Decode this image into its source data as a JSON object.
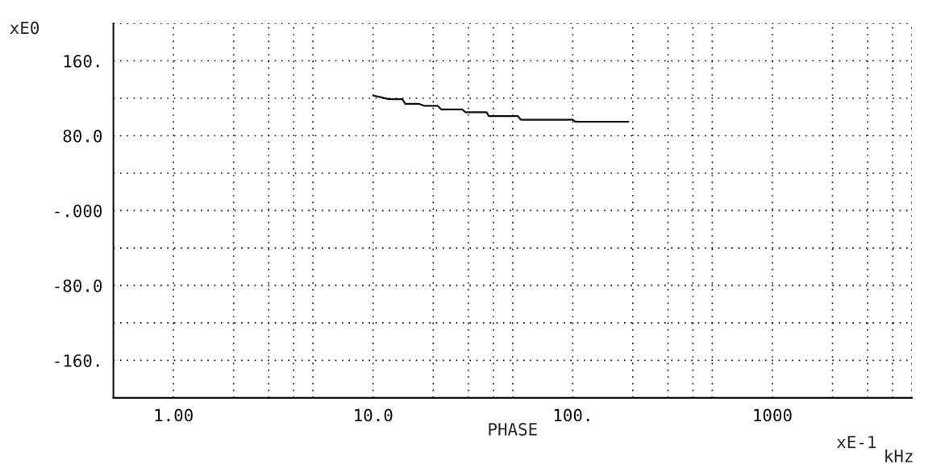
{
  "chart_data": {
    "type": "line",
    "xlabel": "PHASE",
    "annotations": [
      "xE0",
      "xE-1",
      "kHz"
    ],
    "x": [
      10,
      11,
      12,
      14,
      14.5,
      17,
      18,
      21,
      22,
      28,
      29,
      37,
      38,
      53,
      55,
      100,
      103,
      190
    ],
    "series": [
      {
        "color": "#111111",
        "values": [
          123,
          121,
          119,
          119,
          114,
          114,
          112,
          112,
          108,
          108,
          105,
          105,
          101,
          101,
          97,
          97,
          95,
          95
        ]
      }
    ],
    "log": "x",
    "xlim": [
      0.5,
      5000
    ],
    "xticks": [
      {
        "value": 1,
        "label": "1.00"
      },
      {
        "value": 2,
        "label": null
      },
      {
        "value": 3,
        "label": null
      },
      {
        "value": 4,
        "label": null
      },
      {
        "value": 5,
        "label": null
      },
      {
        "value": 10,
        "label": "10.0"
      },
      {
        "value": 20,
        "label": null
      },
      {
        "value": 30,
        "label": null
      },
      {
        "value": 40,
        "label": null
      },
      {
        "value": 50,
        "label": null
      },
      {
        "value": 100,
        "label": "100."
      },
      {
        "value": 200,
        "label": null
      },
      {
        "value": 300,
        "label": null
      },
      {
        "value": 400,
        "label": null
      },
      {
        "value": 500,
        "label": null
      },
      {
        "value": 1000,
        "label": "1000"
      },
      {
        "value": 2000,
        "label": null
      },
      {
        "value": 3000,
        "label": null
      },
      {
        "value": 4000,
        "label": null
      },
      {
        "value": 5000,
        "label": null
      }
    ],
    "ylim": [
      -200,
      200
    ],
    "yticks": [
      {
        "value": 200,
        "label": null
      },
      {
        "value": 160,
        "label": "160."
      },
      {
        "value": 120,
        "label": null
      },
      {
        "value": 80,
        "label": "80.0"
      },
      {
        "value": 40,
        "label": null
      },
      {
        "value": 0,
        "label": "-.000"
      },
      {
        "value": -40,
        "label": null
      },
      {
        "value": -80,
        "label": "-80.0"
      },
      {
        "value": -120,
        "label": null
      },
      {
        "value": -160,
        "label": "-160."
      },
      {
        "value": -200,
        "label": null
      }
    ],
    "grid": true,
    "marker": "none",
    "line_style": "solid"
  }
}
